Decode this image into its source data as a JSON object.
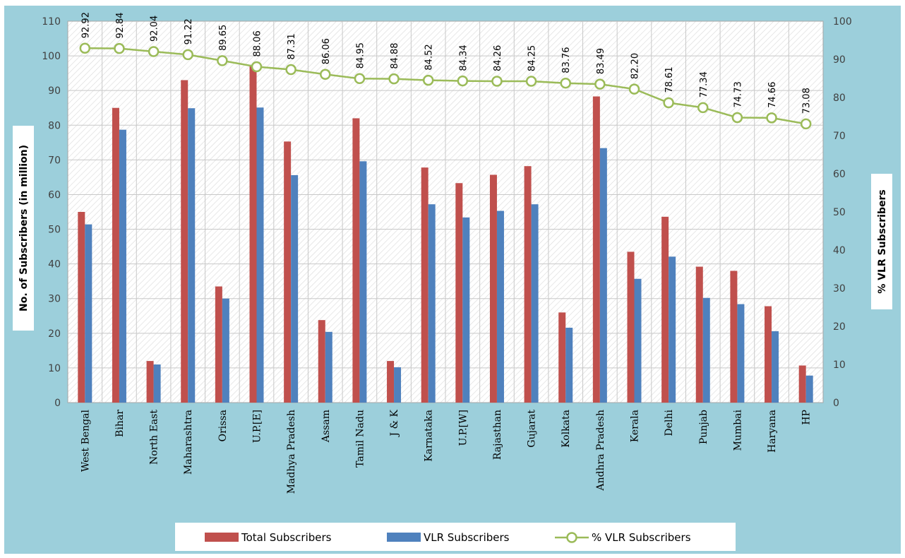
{
  "chart_data": {
    "type": "bar",
    "categories": [
      "West Bengal",
      "Bihar",
      "North East",
      "Maharashtra",
      "Orissa",
      "U.P.[E]",
      "Madhya Pradesh",
      "Assam",
      "Tamil Nadu",
      "J & K",
      "Karnataka",
      "U.P.[W]",
      "Rajasthan",
      "Gujarat",
      "Kolkata",
      "Andhra Pradesh",
      "Kerala",
      "Delhi",
      "Punjab",
      "Mumbai",
      "Haryana",
      "HP"
    ],
    "series": [
      {
        "name": "Total Subscribers",
        "axis": "left",
        "kind": "bar",
        "color": "#C0504D",
        "values": [
          55.0,
          85.0,
          12.0,
          93.0,
          33.5,
          97.0,
          75.3,
          23.8,
          82.0,
          12.0,
          67.8,
          63.3,
          65.7,
          68.2,
          26.0,
          88.3,
          43.5,
          53.6,
          39.2,
          38.0,
          27.8,
          10.7
        ]
      },
      {
        "name": "VLR Subscribers",
        "axis": "left",
        "kind": "bar",
        "color": "#4F81BD",
        "values": [
          51.4,
          78.7,
          11.0,
          84.9,
          30.0,
          85.1,
          65.6,
          20.4,
          69.6,
          10.2,
          57.2,
          53.4,
          55.3,
          57.2,
          21.6,
          73.4,
          35.7,
          42.1,
          30.2,
          28.4,
          20.6,
          7.8
        ]
      },
      {
        "name": "% VLR Subscribers",
        "axis": "right",
        "kind": "line",
        "color": "#9BBB59",
        "values": [
          92.92,
          92.84,
          92.04,
          91.22,
          89.65,
          88.06,
          87.31,
          86.06,
          84.95,
          84.88,
          84.52,
          84.34,
          84.26,
          84.25,
          83.76,
          83.49,
          82.2,
          78.61,
          77.34,
          74.73,
          74.66,
          73.08
        ],
        "labels": [
          "92.92",
          "92.84",
          "92.04",
          "91.22",
          "89.65",
          "88.06",
          "87.31",
          "86.06",
          "84.95",
          "84.88",
          "84.52",
          "84.34",
          "84.26",
          "84.25",
          "83.76",
          "83.49",
          "82.20",
          "78.61",
          "77.34",
          "74.73",
          "74.66",
          "73.08"
        ]
      }
    ],
    "ylabel": "No. of Subscribers (in million)",
    "y2label": "% VLR Subscribers",
    "ylim": [
      0,
      110
    ],
    "y2lim": [
      0,
      100
    ],
    "yticks": [
      "0",
      "10",
      "20",
      "30",
      "40",
      "50",
      "60",
      "70",
      "80",
      "90",
      "100",
      "110"
    ],
    "y2ticks": [
      "0",
      "10",
      "20",
      "30",
      "40",
      "50",
      "60",
      "70",
      "80",
      "90",
      "100"
    ],
    "legend": [
      "Total Subscribers",
      "VLR Subscribers",
      "% VLR Subscribers"
    ],
    "legend_position": "bottom",
    "grid": true,
    "colors": {
      "background": "#9CCFDB",
      "plot_area": "#FFFFFF",
      "hatch": "#D9D9D9",
      "grid": "#C8C8C8"
    }
  }
}
